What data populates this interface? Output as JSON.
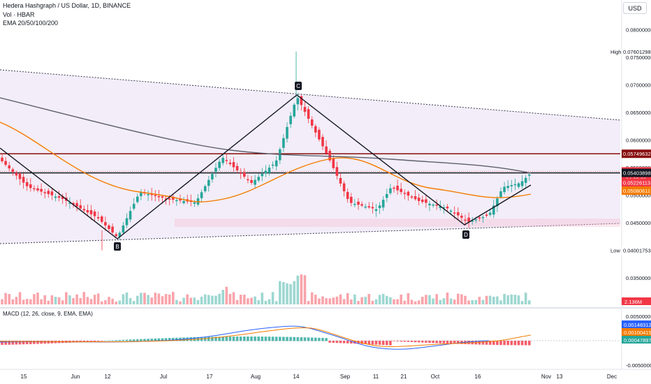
{
  "header": {
    "title": "Hedera Hashgraph / US Dollar, 1D, BINANCE",
    "vol_label": "Vol · HBAR",
    "ema_label": "EMA 20/50/100/200",
    "currency": "USD"
  },
  "chart_data": {
    "type": "candlestick",
    "symbol": "HBAR/USD",
    "interval": "1D",
    "exchange": "BINANCE",
    "x_tick_labels": [
      "15",
      "Jun",
      "12",
      "Jul",
      "17",
      "Aug",
      "14",
      "Sep",
      "11",
      "21",
      "Oct",
      "16",
      "Nov",
      "13",
      "Dec"
    ],
    "y_axis_labels": [
      "0.08000000",
      "0.07500000",
      "0.07000000",
      "0.06500000",
      "0.06000000",
      "0.05500000",
      "0.05000000",
      "0.04500000",
      "0.04000000",
      "0.03500000"
    ],
    "y_axis_values": [
      0.08,
      0.075,
      0.07,
      0.065,
      0.06,
      0.055,
      0.05,
      0.045,
      0.04,
      0.035
    ],
    "ylim": [
      0.0335,
      0.0813
    ],
    "price_labels": [
      {
        "text": "0.07601298",
        "value": 0.07601298,
        "color": "#ffffff",
        "text_color": "#131722",
        "tag": "High"
      },
      {
        "text": "0.05749632",
        "value": 0.05749632,
        "color": "#880e0e",
        "text_color": "#ffffff"
      },
      {
        "text": "0.05430836",
        "value": 0.05430836,
        "color": "#f23645",
        "text_color": "#ffffff",
        "sub": "14:39:36"
      },
      {
        "text": "0.05403898",
        "value": 0.05403898,
        "color": "#131722",
        "text_color": "#ffffff"
      },
      {
        "text": "0.05226113",
        "value": 0.05226113,
        "color": "#f23645",
        "text_color": "#ffffff"
      },
      {
        "text": "0.05080611",
        "value": 0.05080611,
        "color": "#f57c00",
        "text_color": "#ffffff"
      },
      {
        "text": "0.04001753",
        "value": 0.04001753,
        "color": "#ffffff",
        "text_color": "#131722",
        "tag": "Low"
      }
    ],
    "volume_label": "2.136M",
    "pattern_points": [
      "B",
      "C",
      "D"
    ],
    "macd": {
      "label": "MACD (12, 26, close, 9, EMA, EMA)",
      "axis_labels": [
        "0.00500000",
        "-0.00500000"
      ],
      "axis_values": [
        0.005,
        -0.005
      ],
      "value_labels": [
        {
          "text": "0.00148312",
          "color": "#2962ff"
        },
        {
          "text": "0.00100415",
          "color": "#f57c00"
        },
        {
          "text": "0.00047897",
          "color": "#26a69a"
        }
      ]
    },
    "colors": {
      "up": "#26a69a",
      "down": "#f23645",
      "ema_orange": "#f57c00",
      "ema_gray": "#5d606b",
      "channel": "#ede7f6"
    }
  }
}
